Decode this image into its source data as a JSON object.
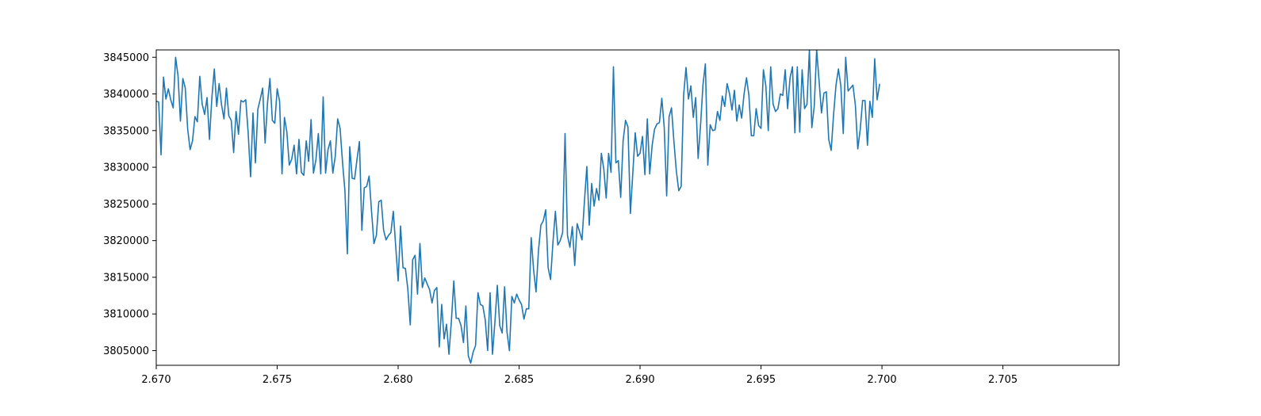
{
  "chart_data": {
    "type": "line",
    "title": "",
    "xlabel": "",
    "ylabel": "",
    "xlim": [
      2.67,
      2.7098
    ],
    "ylim": [
      3803000,
      3846000
    ],
    "grid": false,
    "legend": null,
    "line_color": "#1f77b4",
    "x_ticks": [
      {
        "value": 2.67,
        "label": "2.670"
      },
      {
        "value": 2.675,
        "label": "2.675"
      },
      {
        "value": 2.68,
        "label": "2.680"
      },
      {
        "value": 2.685,
        "label": "2.685"
      },
      {
        "value": 2.69,
        "label": "2.690"
      },
      {
        "value": 2.695,
        "label": "2.695"
      },
      {
        "value": 2.7,
        "label": "2.700"
      },
      {
        "value": 2.705,
        "label": "2.705"
      }
    ],
    "y_ticks": [
      {
        "value": 3805000,
        "label": "3805000"
      },
      {
        "value": 3810000,
        "label": "3810000"
      },
      {
        "value": 3815000,
        "label": "3815000"
      },
      {
        "value": 3820000,
        "label": "3820000"
      },
      {
        "value": 3825000,
        "label": "3825000"
      },
      {
        "value": 3830000,
        "label": "3830000"
      },
      {
        "value": 3835000,
        "label": "3835000"
      },
      {
        "value": 3840000,
        "label": "3840000"
      },
      {
        "value": 3845000,
        "label": "3845000"
      }
    ],
    "series": [
      {
        "x_start": 2.67,
        "x_step": 0.0001,
        "values": [
          3839000,
          3838900,
          3831700,
          3842300,
          3839300,
          3840700,
          3839200,
          3838100,
          3845000,
          3842500,
          3836300,
          3842100,
          3840800,
          3835200,
          3832400,
          3833600,
          3836900,
          3836200,
          3842400,
          3838600,
          3837200,
          3839500,
          3833800,
          3839500,
          3843400,
          3838300,
          3841400,
          3838500,
          3836600,
          3840800,
          3837000,
          3836400,
          3832000,
          3837600,
          3834500,
          3839100,
          3838900,
          3839200,
          3834700,
          3828700,
          3837400,
          3830600,
          3837900,
          3839300,
          3840800,
          3833300,
          3838800,
          3842100,
          3836400,
          3836000,
          3840700,
          3839000,
          3829100,
          3836800,
          3834800,
          3830300,
          3831100,
          3833000,
          3829100,
          3833800,
          3829300,
          3828900,
          3833600,
          3830800,
          3836500,
          3829200,
          3831000,
          3834600,
          3829100,
          3839600,
          3829200,
          3832400,
          3833600,
          3829200,
          3831500,
          3836600,
          3835300,
          3830700,
          3826800,
          3818200,
          3832800,
          3828500,
          3828400,
          3831100,
          3833500,
          3821400,
          3827200,
          3827400,
          3828800,
          3824000,
          3819600,
          3820700,
          3825300,
          3825500,
          3821400,
          3820100,
          3820700,
          3821100,
          3824000,
          3819200,
          3814500,
          3822000,
          3816300,
          3816200,
          3813400,
          3808500,
          3817400,
          3818000,
          3812700,
          3819600,
          3813600,
          3814900,
          3814100,
          3813300,
          3811500,
          3813200,
          3813600,
          3805500,
          3811300,
          3806600,
          3808600,
          3804500,
          3809000,
          3814500,
          3809400,
          3809400,
          3808400,
          3806100,
          3811100,
          3804300,
          3803300,
          3804800,
          3805700,
          3812900,
          3811300,
          3811100,
          3809200,
          3805000,
          3812900,
          3804500,
          3808900,
          3813900,
          3808400,
          3807400,
          3813700,
          3807500,
          3805000,
          3812400,
          3811500,
          3812700,
          3811900,
          3811300,
          3809300,
          3810700,
          3810700,
          3820400,
          3816000,
          3813000,
          3818600,
          3822100,
          3822700,
          3824200,
          3816300,
          3814700,
          3819800,
          3824000,
          3819400,
          3820000,
          3821100,
          3834600,
          3820700,
          3819100,
          3821900,
          3816600,
          3822300,
          3821200,
          3820100,
          3825300,
          3830100,
          3822100,
          3827800,
          3824700,
          3827100,
          3825500,
          3831900,
          3829800,
          3825800,
          3831900,
          3829300,
          3843700,
          3830600,
          3830900,
          3825900,
          3833600,
          3836400,
          3835500,
          3823700,
          3829200,
          3834700,
          3831500,
          3831900,
          3834200,
          3829000,
          3836600,
          3829100,
          3833000,
          3835200,
          3835900,
          3836100,
          3839400,
          3835400,
          3826100,
          3836900,
          3838100,
          3833500,
          3829500,
          3826800,
          3827400,
          3839800,
          3843600,
          3839300,
          3841100,
          3836800,
          3839500,
          3831200,
          3835700,
          3841200,
          3844100,
          3830300,
          3835800,
          3835000,
          3835100,
          3837600,
          3836400,
          3839700,
          3838300,
          3841400,
          3840000,
          3837800,
          3840500,
          3836300,
          3838500,
          3836700,
          3840000,
          3842200,
          3839800,
          3834300,
          3834300,
          3838000,
          3835700,
          3835300,
          3843300,
          3841100,
          3835000,
          3843700,
          3838600,
          3837600,
          3838000,
          3840000,
          3839800,
          3843300,
          3838000,
          3842200,
          3843700,
          3834700,
          3843700,
          3834800,
          3843300,
          3838000,
          3838600,
          3846000,
          3835400,
          3838300,
          3846000,
          3841800,
          3837400,
          3840100,
          3840300,
          3833800,
          3832300,
          3837200,
          3841200,
          3843400,
          3841100,
          3834600,
          3845000,
          3840400,
          3840800,
          3841200,
          3838500,
          3832500,
          3835100,
          3839100,
          3839100,
          3833000,
          3839000,
          3836800,
          3844800,
          3839200,
          3841300
        ]
      }
    ]
  }
}
